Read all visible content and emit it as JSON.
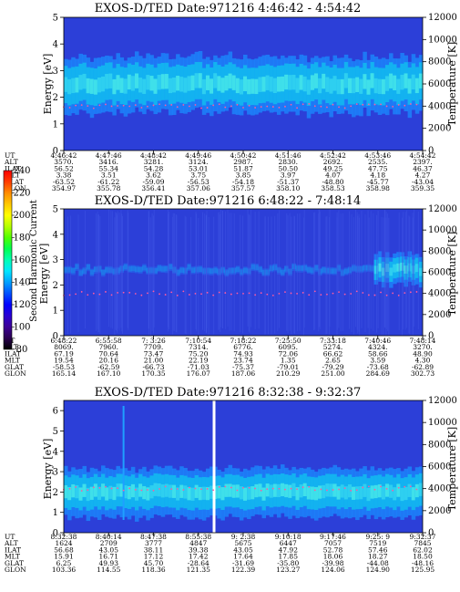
{
  "colorbar": {
    "label": "Second Harmonic Current",
    "ticks": [
      "80",
      "100",
      "120",
      "140",
      "160",
      "180",
      "200",
      "220",
      "240"
    ],
    "colors": [
      "#000000",
      "#2a0050",
      "#3c0096",
      "#2a00d2",
      "#0000ff",
      "#0050ff",
      "#00a0ff",
      "#00e6ff",
      "#00ffb4",
      "#00ff50",
      "#50ff00",
      "#b4ff00",
      "#ffff00",
      "#ffc800",
      "#ff8c00",
      "#ff3c00",
      "#ff0000"
    ]
  },
  "chart_data": [
    {
      "type": "heatmap",
      "title": "EXOS-D/TED   Date:971216  4:46:42 - 4:54:42",
      "ylabel": "Energy [eV]",
      "y2label": "Temperature [K]",
      "ylim": [
        0,
        5
      ],
      "y2lim": [
        0,
        12000
      ],
      "yticks": [
        "0",
        "1",
        "2",
        "3",
        "4",
        "5"
      ],
      "y2ticks": [
        "0",
        "2000",
        "4000",
        "6000",
        "8000",
        "10000",
        "12000"
      ],
      "band": {
        "center_eV": 2.5,
        "half_width_eV": 0.7
      },
      "ephemeris_labels": [
        "UT",
        "ALT",
        "ILAT",
        "MLT",
        "GLAT",
        "GLON"
      ],
      "ephemeris": [
        [
          "4:46:42",
          "4:47:46",
          "4:48:42",
          "4:49:46",
          "4:50:42",
          "4:51:46",
          "4:52:42",
          "4:53:46",
          "4:54:42"
        ],
        [
          "3570.",
          "3416.",
          "3281.",
          "3124.",
          "2987.",
          "2830.",
          "2692.",
          "2535.",
          "2397."
        ],
        [
          "56.52",
          "55.34",
          "54.28",
          "53.01",
          "51.87",
          "50.50",
          "49.25",
          "47.75",
          "46.37"
        ],
        [
          "3.38",
          "3.51",
          "3.62",
          "3.75",
          "3.85",
          "3.97",
          "4.07",
          "4.18",
          "4.27"
        ],
        [
          "-63.52",
          "-61.22",
          "-59.09",
          "-56.53",
          "-54.18",
          "-51.37",
          "-48.80",
          "-45.77",
          "-43.04"
        ],
        [
          "354.97",
          "355.78",
          "356.41",
          "357.06",
          "357.57",
          "358.10",
          "358.53",
          "358.98",
          "359.35"
        ]
      ]
    },
    {
      "type": "heatmap",
      "title": "EXOS-D/TED   Date:971216  6:48:22 - 7:48:14",
      "ylabel": "Energy [eV]",
      "y2label": "Temperature [K]",
      "ylim": [
        0,
        5
      ],
      "y2lim": [
        0,
        12000
      ],
      "yticks": [
        "0",
        "1",
        "2",
        "3",
        "4",
        "5"
      ],
      "y2ticks": [
        "0",
        "2000",
        "4000",
        "6000",
        "8000",
        "10000",
        "12000"
      ],
      "band": {
        "center_eV": 2.6,
        "half_width_eV": 0.4
      },
      "ephemeris_labels": [
        "UT",
        "ALT",
        "ILAT",
        "MLT",
        "GLAT",
        "GLON"
      ],
      "ephemeris": [
        [
          "6:48:22",
          "6:55:58",
          "7: 3:26",
          "7:10:54",
          "7:18:22",
          "7:25:50",
          "7:33:18",
          "7:40:46",
          "7:48:14"
        ],
        [
          "8069.",
          "7960.",
          "7709.",
          "7314.",
          "6776.",
          "6095.",
          "5274.",
          "4324.",
          "3270."
        ],
        [
          "67.19",
          "70.64",
          "73.47",
          "75.20",
          "74.93",
          "72.06",
          "66.62",
          "58.66",
          "48.90"
        ],
        [
          "19.54",
          "20.16",
          "21.00",
          "22.19",
          "23.74",
          "1.35",
          "2.65",
          "3.59",
          "4.30"
        ],
        [
          "-58.53",
          "-62.59",
          "-66.73",
          "-71.03",
          "-75.37",
          "-79.01",
          "-79.29",
          "-73.68",
          "-62.89"
        ],
        [
          "165.14",
          "167.10",
          "170.35",
          "176.07",
          "187.06",
          "210.29",
          "251.00",
          "284.69",
          "302.73"
        ]
      ]
    },
    {
      "type": "heatmap",
      "title": "EXOS-D/TED   Date:971216  8:32:38 - 9:32:37",
      "ylabel": "Energy [eV]",
      "y2label": "Temperature [K]",
      "ylim": [
        0,
        6.5
      ],
      "y2lim": [
        0,
        12000
      ],
      "yticks": [
        "0",
        "1",
        "2",
        "3",
        "4",
        "5",
        "6"
      ],
      "y2ticks": [
        "0",
        "2000",
        "4000",
        "6000",
        "8000",
        "10000",
        "12000"
      ],
      "band": {
        "center_eV": 2.0,
        "half_width_eV": 0.8
      },
      "ephemeris_labels": [
        "UT",
        "ALT",
        "ILAT",
        "MLT",
        "GLAT",
        "GLON"
      ],
      "ephemeris": [
        [
          "8:32:38",
          "8:40:14",
          "8:47:38",
          "8:55:38",
          "9: 2:38",
          "9:10:18",
          "9:17:46",
          "9:25: 9",
          "9:32:37"
        ],
        [
          "1624",
          "2709",
          "3777",
          "4847",
          "5675",
          "6447",
          "7057",
          "7519",
          "7845"
        ],
        [
          "56.68",
          "43.05",
          "38.11",
          "39.38",
          "43.05",
          "47.92",
          "52.78",
          "57.46",
          "62.02"
        ],
        [
          "15.91",
          "16.71",
          "17.12",
          "17.42",
          "17.64",
          "17.85",
          "18.06",
          "18.27",
          "18.50"
        ],
        [
          "6.25",
          "49.93",
          "45.70",
          "-28.64",
          "-31.69",
          "-35.80",
          "-39.98",
          "-44.08",
          "-48.16"
        ],
        [
          "103.36",
          "114.55",
          "118.36",
          "121.35",
          "122.39",
          "123.27",
          "124.06",
          "124.90",
          "125.95"
        ]
      ]
    }
  ]
}
